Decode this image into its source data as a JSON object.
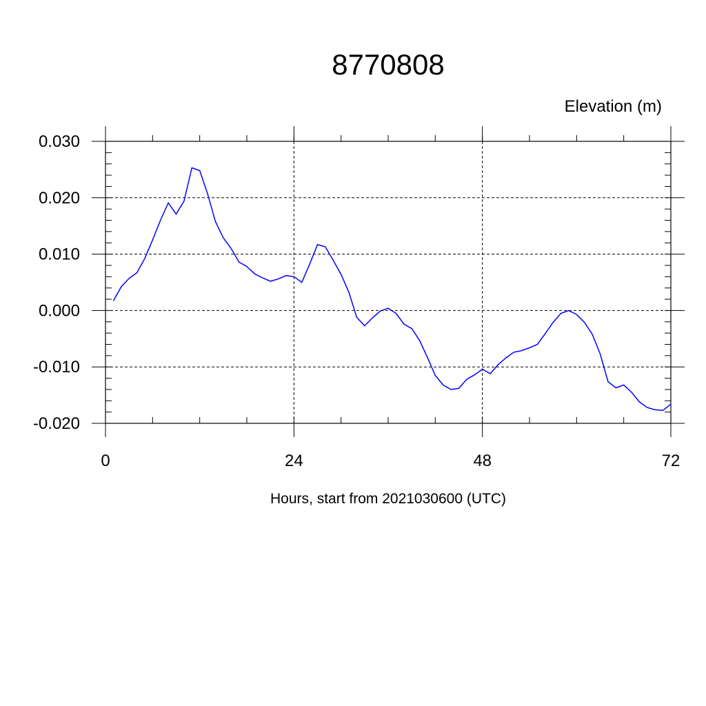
{
  "chart_data": {
    "type": "line",
    "title": "8770808",
    "unit_label": "Elevation (m)",
    "xlabel": "Hours, start from 2021030600 (UTC)",
    "xlim": [
      0,
      72
    ],
    "ylim": [
      -0.02,
      0.03
    ],
    "x_ticks": [
      0,
      24,
      48,
      72
    ],
    "x_tick_labels": [
      "0",
      "24",
      "48",
      "72"
    ],
    "y_ticks": [
      -0.02,
      -0.01,
      0.0,
      0.01,
      0.02,
      0.03
    ],
    "y_tick_labels": [
      "-0.020",
      "-0.010",
      "0.000",
      "0.010",
      "0.020",
      "0.030"
    ],
    "grid": true,
    "series": [
      {
        "color": "#0000ff",
        "x": [
          1,
          2,
          3,
          4,
          5,
          6,
          7,
          8,
          9,
          10,
          11,
          12,
          13,
          14,
          15,
          16,
          17,
          18,
          19,
          20,
          21,
          22,
          23,
          24,
          25,
          26,
          27,
          28,
          29,
          30,
          31,
          32,
          33,
          34,
          35,
          36,
          37,
          38,
          39,
          40,
          41,
          42,
          43,
          44,
          45,
          46,
          47,
          48,
          49,
          50,
          51,
          52,
          53,
          54,
          55,
          56,
          57,
          58,
          59,
          60,
          61,
          62,
          63,
          64,
          65,
          66,
          67,
          68,
          69,
          70,
          71,
          72
        ],
        "y": [
          0.0017,
          0.0042,
          0.0057,
          0.0067,
          0.0092,
          0.0125,
          0.016,
          0.0191,
          0.0171,
          0.0194,
          0.0253,
          0.0248,
          0.0207,
          0.0158,
          0.0129,
          0.011,
          0.0086,
          0.0078,
          0.0065,
          0.0058,
          0.0052,
          0.0056,
          0.0062,
          0.006,
          0.005,
          0.0082,
          0.0117,
          0.0113,
          0.0089,
          0.0064,
          0.0032,
          -0.0012,
          -0.0027,
          -0.0013,
          -0.0001,
          0.0004,
          -0.0005,
          -0.0024,
          -0.0032,
          -0.0053,
          -0.0083,
          -0.0115,
          -0.0132,
          -0.014,
          -0.0138,
          -0.0122,
          -0.0114,
          -0.0104,
          -0.0112,
          -0.0096,
          -0.0084,
          -0.0074,
          -0.0071,
          -0.0066,
          -0.006,
          -0.0041,
          -0.0021,
          -0.0005,
          0.0,
          -0.0007,
          -0.0021,
          -0.0042,
          -0.0077,
          -0.0126,
          -0.0137,
          -0.0132,
          -0.0145,
          -0.0162,
          -0.0172,
          -0.0176,
          -0.0177,
          -0.0166
        ]
      }
    ]
  }
}
